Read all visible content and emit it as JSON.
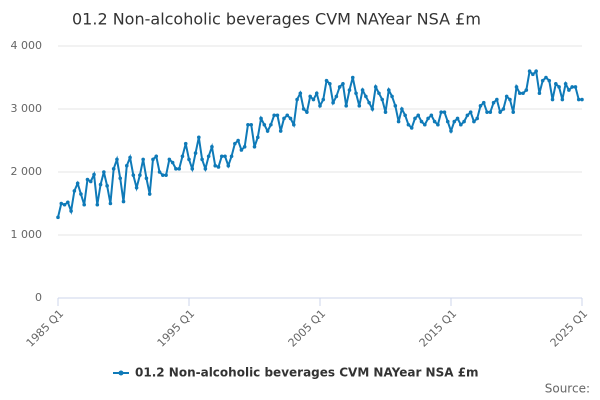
{
  "chart_data": {
    "type": "line",
    "title": "01.2 Non-alcoholic beverages CVM NAYear NSA £m",
    "source": "Source:",
    "categories": [
      "1985 Q1",
      null,
      null,
      null,
      null,
      null,
      null,
      null,
      null,
      null,
      null,
      null,
      null,
      null,
      null,
      null,
      null,
      null,
      null,
      null,
      null,
      null,
      null,
      null,
      null,
      null,
      null,
      null,
      null,
      null,
      null,
      null,
      null,
      null,
      null,
      null,
      null,
      null,
      null,
      null,
      "1995 Q1",
      null,
      null,
      null,
      null,
      null,
      null,
      null,
      null,
      null,
      null,
      null,
      null,
      null,
      null,
      null,
      null,
      null,
      null,
      null,
      null,
      null,
      null,
      null,
      null,
      null,
      null,
      null,
      null,
      null,
      null,
      null,
      null,
      null,
      null,
      null,
      null,
      null,
      null,
      null,
      "2005 Q1",
      null,
      null,
      null,
      null,
      null,
      null,
      null,
      null,
      null,
      null,
      null,
      null,
      null,
      null,
      null,
      null,
      null,
      null,
      null,
      null,
      null,
      null,
      null,
      null,
      null,
      null,
      null,
      null,
      null,
      null,
      null,
      null,
      null,
      null,
      null,
      null,
      null,
      null,
      null,
      "2015 Q1",
      null,
      null,
      null,
      null,
      null,
      null,
      null,
      null,
      null,
      null,
      null,
      null,
      null,
      null,
      null,
      null,
      null,
      null,
      null,
      null,
      null,
      null,
      null,
      null,
      null,
      null,
      null,
      null,
      null,
      null,
      null,
      null,
      null,
      null,
      null,
      null,
      null,
      null,
      null,
      "2025 Q1"
    ],
    "series": [
      {
        "name": "01.2 Non-alcoholic beverages CVM NAYear NSA £m",
        "color": "#0f7ab8",
        "values": [
          1280,
          1500,
          1480,
          1520,
          1380,
          1700,
          1820,
          1650,
          1480,
          1880,
          1850,
          1960,
          1480,
          1800,
          2000,
          1780,
          1500,
          2050,
          2200,
          1900,
          1530,
          2100,
          2230,
          1950,
          1750,
          1950,
          2200,
          1900,
          1650,
          2200,
          2250,
          2000,
          1950,
          1950,
          2200,
          2150,
          2050,
          2050,
          2250,
          2450,
          2200,
          2050,
          2300,
          2550,
          2200,
          2050,
          2250,
          2400,
          2100,
          2080,
          2250,
          2250,
          2100,
          2250,
          2450,
          2500,
          2350,
          2400,
          2750,
          2750,
          2400,
          2550,
          2850,
          2750,
          2650,
          2750,
          2900,
          2900,
          2650,
          2850,
          2900,
          2850,
          2750,
          3150,
          3250,
          3000,
          2950,
          3200,
          3150,
          3250,
          3050,
          3150,
          3450,
          3400,
          3100,
          3200,
          3350,
          3400,
          3050,
          3300,
          3500,
          3250,
          3050,
          3300,
          3200,
          3100,
          3000,
          3350,
          3250,
          3150,
          2950,
          3300,
          3200,
          3050,
          2800,
          3000,
          2900,
          2750,
          2700,
          2850,
          2900,
          2800,
          2750,
          2850,
          2900,
          2800,
          2750,
          2950,
          2950,
          2800,
          2650,
          2800,
          2850,
          2750,
          2800,
          2900,
          2950,
          2800,
          2850,
          3050,
          3100,
          2950,
          2950,
          3100,
          3150,
          2950,
          3000,
          3200,
          3150,
          2950,
          3350,
          3250,
          3250,
          3300,
          3600,
          3550,
          3600,
          3250,
          3450,
          3500,
          3450,
          3150,
          3400,
          3350,
          3150,
          3400,
          3300,
          3350,
          3350,
          3150,
          3150
        ]
      }
    ],
    "ylim": [
      0,
      4000
    ],
    "yticks": [
      {
        "value": 0,
        "label": "0"
      },
      {
        "value": 1000,
        "label": "1 000"
      },
      {
        "value": 2000,
        "label": "2 000"
      },
      {
        "value": 3000,
        "label": "3 000"
      },
      {
        "value": 4000,
        "label": "4 000"
      }
    ],
    "grid": true
  }
}
